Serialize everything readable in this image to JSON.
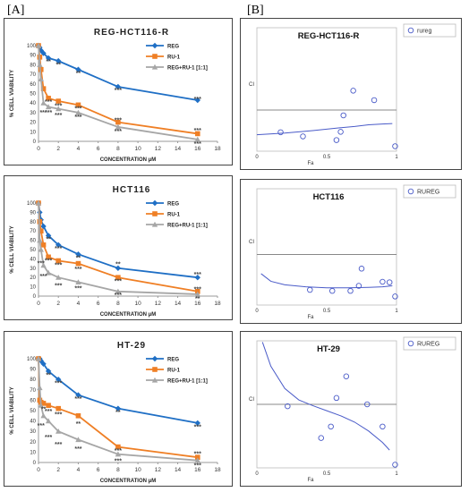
{
  "panel_labels": {
    "left": "[A]",
    "right": "[B]"
  },
  "series_colors": {
    "REG": "#1f6fc5",
    "RU-1": "#ef7f25",
    "REG+RU-1": "#a6a6a6",
    "ci": "#4a5bc8"
  },
  "chart_data": [
    {
      "type": "line",
      "title": "REG-HCT116-R",
      "xlabel": "CONCENTRATION μM",
      "ylabel": "% CELL VIABILITY",
      "xlim": [
        0,
        18
      ],
      "ylim": [
        0,
        100
      ],
      "xticks": [
        "0",
        "2",
        "4",
        "6",
        "8",
        "10",
        "12",
        "14",
        "16",
        "18"
      ],
      "yticks": [
        "0",
        "10",
        "20",
        "30",
        "40",
        "50",
        "60",
        "70",
        "80",
        "90",
        "100"
      ],
      "legend": {
        "placement": "top-right",
        "entries": [
          "REG",
          "RU-1",
          "REG+RU-1 [1:1]"
        ]
      },
      "x": [
        0,
        0.125,
        0.25,
        0.5,
        1,
        2,
        4,
        8,
        16
      ],
      "series": [
        {
          "name": "REG",
          "values": [
            100,
            98,
            95,
            92,
            87,
            84,
            75,
            57,
            43
          ],
          "marker": "diamond"
        },
        {
          "name": "RU-1",
          "values": [
            100,
            88,
            75,
            55,
            45,
            42,
            38,
            20,
            8
          ],
          "marker": "square"
        },
        {
          "name": "REG+RU-1 [1:1]",
          "values": [
            100,
            80,
            65,
            40,
            36,
            34,
            30,
            15,
            2
          ],
          "marker": "triangle"
        }
      ],
      "annotations": [
        {
          "x": 1,
          "y": 84,
          "text": "**"
        },
        {
          "x": 2,
          "y": 81,
          "text": "**"
        },
        {
          "x": 4,
          "y": 72,
          "text": "**"
        },
        {
          "x": 8,
          "y": 54,
          "text": "***"
        },
        {
          "x": 16,
          "y": 45,
          "text": "***"
        },
        {
          "x": 1,
          "y": 42,
          "text": "***"
        },
        {
          "x": 2,
          "y": 38,
          "text": "***"
        },
        {
          "x": 4,
          "y": 35,
          "text": "***"
        },
        {
          "x": 8,
          "y": 23,
          "text": "***"
        },
        {
          "x": 16,
          "y": 12,
          "text": "***"
        },
        {
          "x": 0.5,
          "y": 31,
          "text": "***"
        },
        {
          "x": 1,
          "y": 31,
          "text": "***"
        },
        {
          "x": 2,
          "y": 28,
          "text": "***"
        },
        {
          "x": 4,
          "y": 26,
          "text": "***"
        },
        {
          "x": 8,
          "y": 11,
          "text": "***"
        },
        {
          "x": 16,
          "y": -2,
          "text": "***"
        }
      ]
    },
    {
      "type": "line",
      "title": "HCT116",
      "xlabel": "CONCENTRATION μM",
      "ylabel": "% CELL VIABILITY",
      "xlim": [
        0,
        18
      ],
      "ylim": [
        0,
        100
      ],
      "xticks": [
        "0",
        "2",
        "4",
        "6",
        "8",
        "10",
        "12",
        "14",
        "16",
        "18"
      ],
      "yticks": [
        "0",
        "10",
        "20",
        "30",
        "40",
        "50",
        "60",
        "70",
        "80",
        "90",
        "100"
      ],
      "legend": {
        "placement": "top-right",
        "entries": [
          "REG",
          "RU-1",
          "REG+RU-1 [1:1]"
        ]
      },
      "x": [
        0,
        0.125,
        0.25,
        0.5,
        1,
        2,
        4,
        8,
        16
      ],
      "series": [
        {
          "name": "REG",
          "values": [
            100,
            90,
            82,
            75,
            65,
            55,
            45,
            30,
            20
          ],
          "marker": "diamond"
        },
        {
          "name": "RU-1",
          "values": [
            100,
            80,
            70,
            55,
            42,
            38,
            35,
            20,
            5
          ],
          "marker": "square"
        },
        {
          "name": "REG+RU-1 [1:1]",
          "values": [
            100,
            60,
            50,
            33,
            25,
            20,
            15,
            5,
            2
          ],
          "marker": "triangle"
        }
      ],
      "annotations": [
        {
          "x": 1,
          "y": 62,
          "text": "**"
        },
        {
          "x": 2,
          "y": 52,
          "text": "***"
        },
        {
          "x": 4,
          "y": 42,
          "text": "**"
        },
        {
          "x": 8,
          "y": 35,
          "text": "**"
        },
        {
          "x": 16,
          "y": 24,
          "text": "***"
        },
        {
          "x": 1,
          "y": 39,
          "text": "***"
        },
        {
          "x": 2,
          "y": 34,
          "text": "***"
        },
        {
          "x": 4,
          "y": 30,
          "text": "***"
        },
        {
          "x": 8,
          "y": 17,
          "text": "***"
        },
        {
          "x": 16,
          "y": 8,
          "text": "***"
        },
        {
          "x": 0.25,
          "y": 36,
          "text": "***"
        },
        {
          "x": 0.5,
          "y": 22,
          "text": "***"
        },
        {
          "x": 2,
          "y": 12,
          "text": "***"
        },
        {
          "x": 4,
          "y": 9,
          "text": "***"
        },
        {
          "x": 8,
          "y": 2,
          "text": "***"
        },
        {
          "x": 16,
          "y": -2,
          "text": "**"
        }
      ]
    },
    {
      "type": "line",
      "title": "HT-29",
      "xlabel": "CONCENTRATION μM",
      "ylabel": "% CELL VIABILITY",
      "xlim": [
        0,
        18
      ],
      "ylim": [
        0,
        100
      ],
      "xticks": [
        "0",
        "2",
        "4",
        "6",
        "8",
        "10",
        "12",
        "14",
        "16",
        "18"
      ],
      "yticks": [
        "0",
        "10",
        "20",
        "30",
        "40",
        "50",
        "60",
        "70",
        "80",
        "90",
        "100"
      ],
      "legend": {
        "placement": "top-right",
        "entries": [
          "REG",
          "RU-1",
          "REG+RU-1 [1:1]"
        ]
      },
      "x": [
        0,
        0.125,
        0.25,
        0.5,
        1,
        2,
        4,
        8,
        16
      ],
      "series": [
        {
          "name": "REG",
          "values": [
            100,
            100,
            98,
            95,
            88,
            80,
            65,
            52,
            38
          ],
          "marker": "diamond"
        },
        {
          "name": "RU-1",
          "values": [
            100,
            60,
            58,
            57,
            55,
            52,
            45,
            15,
            5
          ],
          "marker": "square"
        },
        {
          "name": "REG+RU-1 [1:1]",
          "values": [
            100,
            72,
            55,
            45,
            40,
            30,
            22,
            8,
            2
          ],
          "marker": "triangle"
        }
      ],
      "annotations": [
        {
          "x": 1,
          "y": 85,
          "text": "**"
        },
        {
          "x": 2,
          "y": 77,
          "text": "***"
        },
        {
          "x": 4,
          "y": 62,
          "text": "***"
        },
        {
          "x": 8,
          "y": 49,
          "text": "**"
        },
        {
          "x": 16,
          "y": 35,
          "text": "***"
        },
        {
          "x": 0.5,
          "y": 52,
          "text": "**"
        },
        {
          "x": 1,
          "y": 50,
          "text": "***"
        },
        {
          "x": 2,
          "y": 47,
          "text": "***"
        },
        {
          "x": 4,
          "y": 38,
          "text": "**"
        },
        {
          "x": 8,
          "y": 12,
          "text": "***"
        },
        {
          "x": 16,
          "y": 9,
          "text": "***"
        },
        {
          "x": 0.25,
          "y": 36,
          "text": "***"
        },
        {
          "x": 1,
          "y": 25,
          "text": "***"
        },
        {
          "x": 2,
          "y": 18,
          "text": "***"
        },
        {
          "x": 4,
          "y": 14,
          "text": "***"
        },
        {
          "x": 8,
          "y": 2,
          "text": "***"
        },
        {
          "x": 16,
          "y": -2,
          "text": "***"
        }
      ]
    },
    {
      "type": "scatter",
      "title": "REG-HCT116-R",
      "xlabel": "Fa",
      "ylabel": "CI",
      "xlim": [
        0,
        1
      ],
      "ylim": [
        0,
        3
      ],
      "xticks": [
        "0",
        "0.5",
        "1"
      ],
      "legend": {
        "placement": "top-right",
        "entries": [
          "rureg"
        ]
      },
      "reference_line": 1,
      "points": [
        {
          "x": 0.17,
          "y": 0.46
        },
        {
          "x": 0.33,
          "y": 0.36
        },
        {
          "x": 0.57,
          "y": 0.27
        },
        {
          "x": 0.6,
          "y": 0.47
        },
        {
          "x": 0.62,
          "y": 0.87
        },
        {
          "x": 0.69,
          "y": 1.47
        },
        {
          "x": 0.84,
          "y": 1.24
        },
        {
          "x": 0.99,
          "y": 0.12
        }
      ],
      "curve": [
        [
          0.0,
          0.4
        ],
        [
          0.2,
          0.44
        ],
        [
          0.4,
          0.5
        ],
        [
          0.6,
          0.57
        ],
        [
          0.7,
          0.6
        ],
        [
          0.8,
          0.64
        ],
        [
          0.9,
          0.66
        ],
        [
          0.97,
          0.67
        ]
      ]
    },
    {
      "type": "scatter",
      "title": "HCT116",
      "xlabel": "Fa",
      "ylabel": "CI",
      "xlim": [
        0,
        1
      ],
      "ylim": [
        0,
        2.3
      ],
      "xticks": [
        "0",
        "0.5",
        "1"
      ],
      "legend": {
        "placement": "top-right",
        "entries": [
          "RUREG"
        ]
      },
      "reference_line": 1,
      "points": [
        {
          "x": 0.38,
          "y": 0.3
        },
        {
          "x": 0.54,
          "y": 0.28
        },
        {
          "x": 0.67,
          "y": 0.28
        },
        {
          "x": 0.73,
          "y": 0.38
        },
        {
          "x": 0.75,
          "y": 0.72
        },
        {
          "x": 0.9,
          "y": 0.46
        },
        {
          "x": 0.95,
          "y": 0.45
        },
        {
          "x": 0.99,
          "y": 0.17
        }
      ],
      "curve": [
        [
          0.03,
          0.62
        ],
        [
          0.1,
          0.47
        ],
        [
          0.2,
          0.4
        ],
        [
          0.35,
          0.36
        ],
        [
          0.5,
          0.34
        ],
        [
          0.65,
          0.34
        ],
        [
          0.8,
          0.35
        ],
        [
          0.9,
          0.36
        ],
        [
          0.97,
          0.38
        ]
      ]
    },
    {
      "type": "scatter",
      "title": "HT-29",
      "xlabel": "Fa",
      "ylabel": "CI",
      "xlim": [
        0,
        1
      ],
      "ylim": [
        0,
        2
      ],
      "xticks": [
        "0",
        "0.5",
        "1"
      ],
      "legend": {
        "placement": "top-right",
        "entries": [
          "RUREG"
        ]
      },
      "reference_line": 1,
      "points": [
        {
          "x": 0.22,
          "y": 0.97
        },
        {
          "x": 0.46,
          "y": 0.47
        },
        {
          "x": 0.53,
          "y": 0.65
        },
        {
          "x": 0.57,
          "y": 1.1
        },
        {
          "x": 0.64,
          "y": 1.44
        },
        {
          "x": 0.79,
          "y": 1.0
        },
        {
          "x": 0.9,
          "y": 0.65
        },
        {
          "x": 0.99,
          "y": 0.05
        }
      ],
      "curve": [
        [
          0.04,
          1.98
        ],
        [
          0.1,
          1.6
        ],
        [
          0.2,
          1.25
        ],
        [
          0.3,
          1.07
        ],
        [
          0.4,
          0.98
        ],
        [
          0.5,
          0.9
        ],
        [
          0.6,
          0.82
        ],
        [
          0.7,
          0.72
        ],
        [
          0.8,
          0.58
        ],
        [
          0.9,
          0.4
        ],
        [
          0.95,
          0.28
        ]
      ]
    }
  ]
}
